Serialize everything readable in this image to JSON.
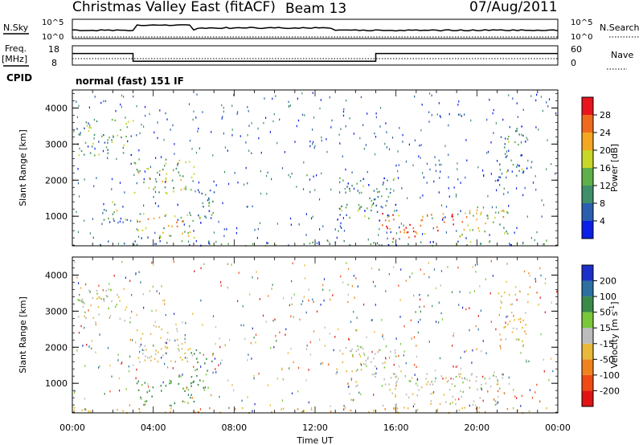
{
  "header": {
    "title": "Christmas Valley East (fitACF)",
    "beam": "Beam 13",
    "date": "07/Aug/2011"
  },
  "status_panels": {
    "nsky": {
      "label": "N.Sky",
      "ticks": [
        "10^5",
        "10^0"
      ]
    },
    "nsearch": {
      "label": "N.Search",
      "ticks": [
        "10^5",
        "10^0"
      ]
    },
    "freq": {
      "label_line1": "Freq.",
      "label_line2": "[MHz]",
      "ticks": [
        "18",
        "8"
      ]
    },
    "nave": {
      "label": "Nave",
      "ticks": [
        "60",
        "0"
      ]
    },
    "cpid": {
      "label": "CPID",
      "value": "normal (fast) 151 IF"
    }
  },
  "colors": {
    "power_scale": [
      "#0a1ee6",
      "#2a5fb0",
      "#3f8f6a",
      "#5fb04a",
      "#c8d628",
      "#f5a623",
      "#f06a1e",
      "#e8141e"
    ],
    "velocity_scale": [
      "#1c2fc8",
      "#2c6fa0",
      "#3a8a4a",
      "#78c83a",
      "#bcbcbc",
      "#e8b83a",
      "#f0821e",
      "#f04a14",
      "#e01414"
    ]
  },
  "chart_data": [
    {
      "type": "heatmap",
      "name": "power-panel",
      "ylabel": "Slant Range [km]",
      "ylim": [
        180,
        4500
      ],
      "xlim_hours": [
        0,
        24
      ],
      "y_ticks": [
        1000,
        2000,
        3000,
        4000
      ],
      "colorbar": {
        "label": "Power [dB]",
        "range": [
          0,
          32
        ],
        "tick_labels": [
          "4",
          "8",
          "12",
          "16",
          "20",
          "24",
          "28"
        ]
      },
      "regions": [
        {
          "t0": 0.2,
          "t1": 3.0,
          "r0": 2700,
          "r1": 3700,
          "level": 0.35
        },
        {
          "t0": 1.5,
          "t1": 2.8,
          "r0": 850,
          "r1": 1450,
          "level": 0.45
        },
        {
          "t0": 3.0,
          "t1": 6.0,
          "r0": 1600,
          "r1": 2600,
          "level": 0.5
        },
        {
          "t0": 3.0,
          "t1": 6.0,
          "r0": 400,
          "r1": 1100,
          "level": 0.55
        },
        {
          "t0": 5.8,
          "t1": 7.0,
          "r0": 800,
          "r1": 2000,
          "level": 0.35
        },
        {
          "t0": 13.0,
          "t1": 16.0,
          "r0": 900,
          "r1": 2100,
          "level": 0.3
        },
        {
          "t0": 15.3,
          "t1": 19.0,
          "r0": 400,
          "r1": 1100,
          "level": 0.85
        },
        {
          "t0": 19.0,
          "t1": 21.5,
          "r0": 400,
          "r1": 1300,
          "level": 0.6
        },
        {
          "t0": 21.0,
          "t1": 22.5,
          "r0": 2000,
          "r1": 3600,
          "level": 0.3
        },
        {
          "t0": 0.0,
          "t1": 24.0,
          "r0": 200,
          "r1": 350,
          "level": 0.3
        }
      ]
    },
    {
      "type": "heatmap",
      "name": "velocity-panel",
      "ylabel": "Slant Range [km]",
      "xlabel": "Time UT",
      "ylim": [
        180,
        4500
      ],
      "xlim_hours": [
        0,
        24
      ],
      "y_ticks": [
        1000,
        2000,
        3000,
        4000
      ],
      "x_tick_labels": [
        "00:00",
        "04:00",
        "08:00",
        "12:00",
        "16:00",
        "20:00",
        "00:00"
      ],
      "colorbar": {
        "label": "Velocity [m s-1]",
        "range": [
          -250,
          250
        ],
        "tick_labels": [
          "200",
          "100",
          "50",
          "15",
          "-15",
          "-50",
          "-100",
          "-200"
        ]
      },
      "regions": [
        {
          "t0": 0.2,
          "t1": 3.0,
          "r0": 2700,
          "r1": 3700,
          "vel": 0
        },
        {
          "t0": 3.0,
          "t1": 6.0,
          "r0": 1600,
          "r1": 2600,
          "vel": -20
        },
        {
          "t0": 3.0,
          "t1": 6.0,
          "r0": 400,
          "r1": 1100,
          "vel": 60
        },
        {
          "t0": 5.8,
          "t1": 7.0,
          "r0": 800,
          "r1": 2000,
          "vel": 70
        },
        {
          "t0": 13.0,
          "t1": 16.0,
          "r0": 900,
          "r1": 2100,
          "vel": 0
        },
        {
          "t0": 15.3,
          "t1": 21.5,
          "r0": 400,
          "r1": 1300,
          "vel": 0
        },
        {
          "t0": 21.0,
          "t1": 22.5,
          "r0": 2000,
          "r1": 3600,
          "vel": -30
        },
        {
          "t0": 0.0,
          "t1": 24.0,
          "r0": 200,
          "r1": 350,
          "vel": -40
        }
      ]
    }
  ],
  "frequency_series": {
    "times": [
      0,
      3.0,
      3.0,
      15.0,
      15.0,
      24
    ],
    "values_mhz": [
      14,
      14,
      10,
      10,
      14,
      14
    ]
  }
}
